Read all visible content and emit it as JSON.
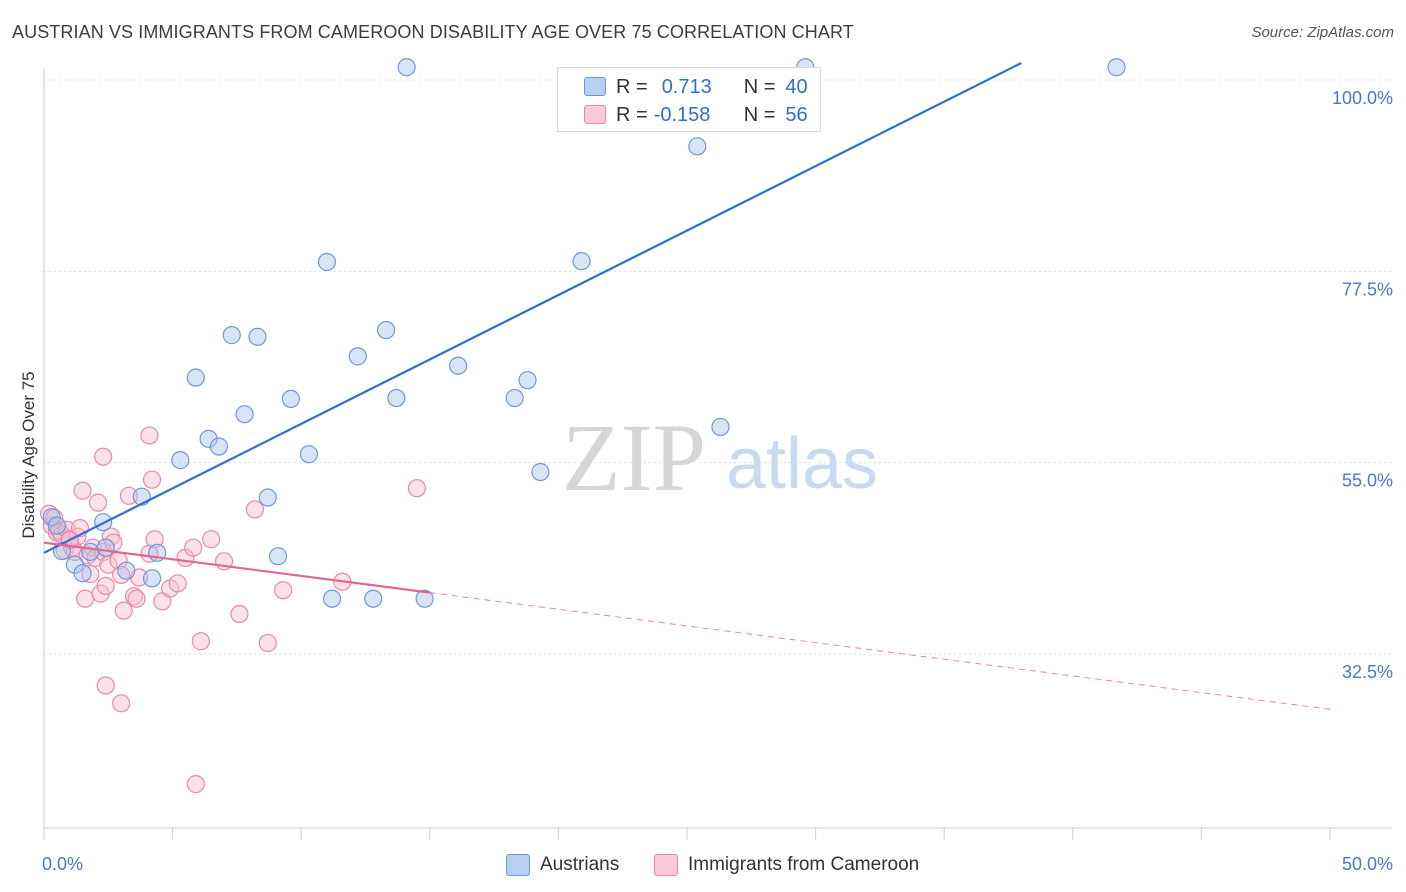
{
  "title": "AUSTRIAN VS IMMIGRANTS FROM CAMEROON DISABILITY AGE OVER 75 CORRELATION CHART",
  "source": "Source: ZipAtlas.com",
  "watermark": {
    "zip": "ZIP",
    "atlas": "atlas"
  },
  "legend": {
    "austrians": {
      "r_label": "R =",
      "r_value": "0.713",
      "n_label": "N =",
      "n_value": "40"
    },
    "cameroon": {
      "r_label": "R =",
      "r_value": "-0.158",
      "n_label": "N =",
      "n_value": "56"
    }
  },
  "bottom_legend": {
    "austrians": "Austrians",
    "cameroon": "Immigrants from Cameroon"
  },
  "chart_data": {
    "type": "scatter",
    "title": "AUSTRIAN VS IMMIGRANTS FROM CAMEROON DISABILITY AGE OVER 75 CORRELATION CHART",
    "ylabel": "Disability Age Over 75",
    "xlabel": "",
    "xlim": [
      0,
      50
    ],
    "ylim": [
      14,
      102
    ],
    "x_tick_labels": [
      "0.0%",
      "50.0%"
    ],
    "y_ticks": [
      100,
      77.5,
      55,
      32.5
    ],
    "y_tick_labels": [
      "100.0%",
      "77.5%",
      "55.0%",
      "32.5%"
    ],
    "colors": {
      "austrians_fill": "#a9c4ec",
      "austrians_stroke": "#6f98d8",
      "austrians_line": "#2f6fcc",
      "cameroon_fill": "#f6bfd0",
      "cameroon_stroke": "#e98aa8",
      "cameroon_line": "#e06890",
      "axis_text": "#4878c8"
    },
    "series": [
      {
        "name": "Austrians",
        "r": 0.713,
        "n": 40,
        "trend": {
          "x": [
            0,
            38
          ],
          "y": [
            44.4,
            102
          ]
        },
        "points": [
          [
            0.3,
            48.6
          ],
          [
            0.7,
            44.6
          ],
          [
            1.2,
            43.0
          ],
          [
            1.8,
            44.5
          ],
          [
            2.3,
            48.0
          ],
          [
            2.4,
            45.0
          ],
          [
            3.8,
            51.0
          ],
          [
            4.2,
            41.4
          ],
          [
            4.4,
            44.4
          ],
          [
            5.3,
            55.3
          ],
          [
            5.9,
            65.0
          ],
          [
            6.4,
            57.8
          ],
          [
            6.8,
            56.9
          ],
          [
            7.3,
            70.0
          ],
          [
            7.8,
            60.7
          ],
          [
            8.3,
            69.8
          ],
          [
            8.7,
            50.9
          ],
          [
            9.6,
            62.5
          ],
          [
            9.1,
            44.0
          ],
          [
            10.3,
            56.0
          ],
          [
            11.0,
            78.6
          ],
          [
            11.2,
            39.0
          ],
          [
            12.2,
            67.5
          ],
          [
            12.8,
            39.0
          ],
          [
            13.3,
            70.6
          ],
          [
            13.7,
            62.6
          ],
          [
            14.1,
            101.5
          ],
          [
            14.8,
            39.0
          ],
          [
            16.1,
            66.4
          ],
          [
            18.3,
            62.6
          ],
          [
            18.8,
            64.7
          ],
          [
            19.3,
            53.9
          ],
          [
            20.9,
            78.7
          ],
          [
            25.4,
            92.2
          ],
          [
            26.3,
            59.2
          ],
          [
            29.6,
            101.5
          ],
          [
            1.5,
            42.0
          ],
          [
            3.2,
            42.3
          ],
          [
            0.5,
            47.6
          ],
          [
            41.7,
            101.5
          ]
        ]
      },
      {
        "name": "Immigrants from Cameroon",
        "r": -0.158,
        "n": 56,
        "trend": {
          "x": [
            0,
            50
          ],
          "y": [
            45.6,
            26.0
          ]
        },
        "trend_solid_until_x": 15,
        "points": [
          [
            0.2,
            49.0
          ],
          [
            0.3,
            47.6
          ],
          [
            0.4,
            48.5
          ],
          [
            0.5,
            46.8
          ],
          [
            0.6,
            47.0
          ],
          [
            0.7,
            46.5
          ],
          [
            0.8,
            44.7
          ],
          [
            0.9,
            47.1
          ],
          [
            1.0,
            46.0
          ],
          [
            1.1,
            45.0
          ],
          [
            1.2,
            44.5
          ],
          [
            1.3,
            46.3
          ],
          [
            1.4,
            47.3
          ],
          [
            1.5,
            51.7
          ],
          [
            1.6,
            39.0
          ],
          [
            1.7,
            44.1
          ],
          [
            1.9,
            45.0
          ],
          [
            2.0,
            43.8
          ],
          [
            2.1,
            50.3
          ],
          [
            2.2,
            39.6
          ],
          [
            2.3,
            44.5
          ],
          [
            2.4,
            40.5
          ],
          [
            2.5,
            43.0
          ],
          [
            2.6,
            46.3
          ],
          [
            2.7,
            45.6
          ],
          [
            2.9,
            43.5
          ],
          [
            3.0,
            41.8
          ],
          [
            3.1,
            37.6
          ],
          [
            3.3,
            51.1
          ],
          [
            3.5,
            39.3
          ],
          [
            3.6,
            39.0
          ],
          [
            3.7,
            41.5
          ],
          [
            4.1,
            44.3
          ],
          [
            4.2,
            53.0
          ],
          [
            4.3,
            46.0
          ],
          [
            4.6,
            38.7
          ],
          [
            4.9,
            40.2
          ],
          [
            5.2,
            40.8
          ],
          [
            5.5,
            43.8
          ],
          [
            5.8,
            45.0
          ],
          [
            6.1,
            34.0
          ],
          [
            6.5,
            46.0
          ],
          [
            7.0,
            43.4
          ],
          [
            7.6,
            37.2
          ],
          [
            8.2,
            49.5
          ],
          [
            8.7,
            33.8
          ],
          [
            9.3,
            40.0
          ],
          [
            11.6,
            41.0
          ],
          [
            14.5,
            52.0
          ],
          [
            4.1,
            58.2
          ],
          [
            2.3,
            55.7
          ],
          [
            2.4,
            28.8
          ],
          [
            3.0,
            26.7
          ],
          [
            5.9,
            17.2
          ],
          [
            1.0,
            45.9
          ],
          [
            1.8,
            41.9
          ]
        ]
      }
    ]
  }
}
